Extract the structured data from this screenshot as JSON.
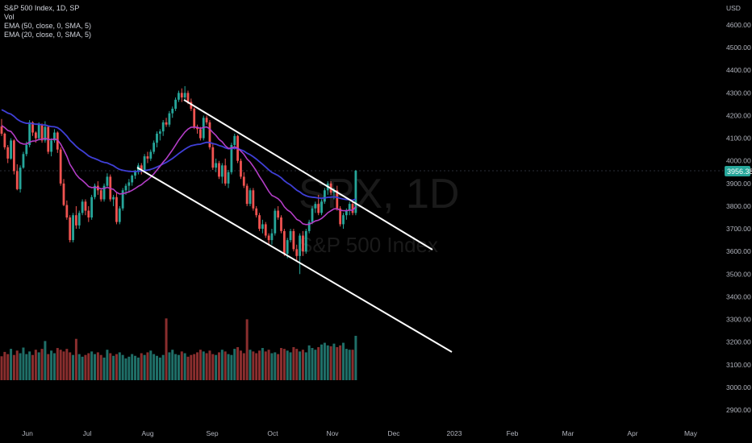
{
  "legend": {
    "title": "S&P 500 Index, 1D, SP",
    "vol": "Vol",
    "ema50": "EMA (50, close, 0, SMA, 5)",
    "ema20": "EMA (20, close, 0, SMA, 5)"
  },
  "currency": "USD",
  "watermark": {
    "symbol": "SPX, 1D",
    "name": "S&P 500 Index"
  },
  "last_price": "3956.38",
  "colors": {
    "up": "#26a69a",
    "down": "#ef5350",
    "ema50": "#3f3fd6",
    "ema20": "#b33dc6",
    "trendline": "#ffffff",
    "price_tag": "#26a69a"
  },
  "chart_data": {
    "type": "candlestick",
    "y_ticks": [
      "4600.00",
      "4500.00",
      "4400.00",
      "4300.00",
      "4200.00",
      "4100.00",
      "4000.00",
      "3900.00",
      "3800.00",
      "3700.00",
      "3600.00",
      "3500.00",
      "3400.00",
      "3300.00",
      "3200.00",
      "3100.00",
      "3000.00",
      "2900.00"
    ],
    "x_ticks": [
      "Jun",
      "Jul",
      "Aug",
      "Sep",
      "Oct",
      "Nov",
      "Dec",
      "2023",
      "Feb",
      "Mar",
      "Apr",
      "May"
    ],
    "ylim": [
      2860,
      4650
    ],
    "candles": [
      [
        4152,
        4185,
        4110,
        4120
      ],
      [
        4120,
        4125,
        4050,
        4060
      ],
      [
        4060,
        4070,
        3990,
        4010
      ],
      [
        4010,
        4100,
        4005,
        4090
      ],
      [
        4090,
        4095,
        3940,
        3955
      ],
      [
        3955,
        3985,
        3870,
        3875
      ],
      [
        3875,
        3980,
        3860,
        3970
      ],
      [
        3970,
        4040,
        3965,
        4030
      ],
      [
        4030,
        4085,
        4020,
        4070
      ],
      [
        4070,
        4180,
        4060,
        4170
      ],
      [
        4170,
        4175,
        4110,
        4125
      ],
      [
        4125,
        4130,
        4080,
        4100
      ],
      [
        4100,
        4170,
        4090,
        4160
      ],
      [
        4160,
        4165,
        4080,
        4090
      ],
      [
        4090,
        4175,
        4080,
        4150
      ],
      [
        4150,
        4155,
        4030,
        4040
      ],
      [
        4040,
        4100,
        4020,
        4090
      ],
      [
        4090,
        4140,
        4080,
        4125
      ],
      [
        4125,
        4130,
        4035,
        4050
      ],
      [
        4050,
        4060,
        3890,
        3900
      ],
      [
        3900,
        3920,
        3800,
        3805
      ],
      [
        3805,
        3825,
        3740,
        3750
      ],
      [
        3750,
        3760,
        3640,
        3650
      ],
      [
        3650,
        3770,
        3640,
        3760
      ],
      [
        3760,
        3800,
        3700,
        3715
      ],
      [
        3715,
        3780,
        3700,
        3770
      ],
      [
        3770,
        3830,
        3760,
        3820
      ],
      [
        3820,
        3830,
        3760,
        3780
      ],
      [
        3780,
        3800,
        3730,
        3750
      ],
      [
        3750,
        3850,
        3740,
        3840
      ],
      [
        3840,
        3900,
        3830,
        3890
      ],
      [
        3890,
        3910,
        3850,
        3870
      ],
      [
        3870,
        3880,
        3820,
        3830
      ],
      [
        3830,
        3900,
        3820,
        3890
      ],
      [
        3890,
        3945,
        3880,
        3930
      ],
      [
        3930,
        3940,
        3820,
        3830
      ],
      [
        3830,
        3850,
        3800,
        3840
      ],
      [
        3840,
        3860,
        3720,
        3730
      ],
      [
        3730,
        3800,
        3720,
        3790
      ],
      [
        3790,
        3880,
        3780,
        3870
      ],
      [
        3870,
        3900,
        3850,
        3890
      ],
      [
        3890,
        3920,
        3860,
        3905
      ],
      [
        3905,
        3940,
        3890,
        3935
      ],
      [
        3935,
        3960,
        3920,
        3955
      ],
      [
        3955,
        3990,
        3940,
        3980
      ],
      [
        3980,
        3990,
        3940,
        3960
      ],
      [
        3960,
        4030,
        3950,
        4020
      ],
      [
        4020,
        4040,
        3990,
        4010
      ],
      [
        4010,
        4050,
        4000,
        4040
      ],
      [
        4040,
        4090,
        4030,
        4080
      ],
      [
        4080,
        4130,
        4060,
        4120
      ],
      [
        4120,
        4140,
        4090,
        4130
      ],
      [
        4130,
        4180,
        4110,
        4170
      ],
      [
        4170,
        4190,
        4150,
        4160
      ],
      [
        4160,
        4220,
        4150,
        4210
      ],
      [
        4210,
        4240,
        4190,
        4230
      ],
      [
        4230,
        4280,
        4220,
        4270
      ],
      [
        4270,
        4310,
        4260,
        4300
      ],
      [
        4300,
        4320,
        4260,
        4280
      ],
      [
        4280,
        4330,
        4270,
        4300
      ],
      [
        4300,
        4310,
        4250,
        4260
      ],
      [
        4260,
        4275,
        4220,
        4230
      ],
      [
        4230,
        4235,
        4140,
        4150
      ],
      [
        4150,
        4160,
        4120,
        4140
      ],
      [
        4140,
        4150,
        4090,
        4100
      ],
      [
        4100,
        4200,
        4090,
        4190
      ],
      [
        4190,
        4200,
        4160,
        4170
      ],
      [
        4170,
        4180,
        4050,
        4060
      ],
      [
        4060,
        4080,
        3960,
        3970
      ],
      [
        3970,
        4010,
        3950,
        3990
      ],
      [
        3990,
        4000,
        3920,
        3930
      ],
      [
        3930,
        3990,
        3900,
        3980
      ],
      [
        3980,
        4010,
        3890,
        3900
      ],
      [
        3900,
        3960,
        3880,
        3950
      ],
      [
        3950,
        4080,
        3940,
        4070
      ],
      [
        4070,
        4120,
        4050,
        4110
      ],
      [
        4110,
        4115,
        3990,
        4000
      ],
      [
        4000,
        4010,
        3920,
        3930
      ],
      [
        3930,
        3950,
        3880,
        3890
      ],
      [
        3890,
        3900,
        3800,
        3810
      ],
      [
        3810,
        3880,
        3800,
        3870
      ],
      [
        3870,
        3880,
        3780,
        3790
      ],
      [
        3790,
        3800,
        3750,
        3760
      ],
      [
        3760,
        3770,
        3690,
        3700
      ],
      [
        3700,
        3740,
        3680,
        3720
      ],
      [
        3720,
        3730,
        3660,
        3670
      ],
      [
        3670,
        3680,
        3630,
        3650
      ],
      [
        3650,
        3700,
        3630,
        3680
      ],
      [
        3680,
        3790,
        3670,
        3780
      ],
      [
        3780,
        3800,
        3740,
        3750
      ],
      [
        3750,
        3760,
        3680,
        3690
      ],
      [
        3690,
        3700,
        3580,
        3590
      ],
      [
        3590,
        3660,
        3570,
        3650
      ],
      [
        3650,
        3700,
        3640,
        3690
      ],
      [
        3690,
        3700,
        3600,
        3610
      ],
      [
        3610,
        3630,
        3560,
        3580
      ],
      [
        3580,
        3680,
        3500,
        3670
      ],
      [
        3670,
        3690,
        3580,
        3600
      ],
      [
        3600,
        3700,
        3590,
        3690
      ],
      [
        3690,
        3740,
        3680,
        3730
      ],
      [
        3730,
        3800,
        3720,
        3790
      ],
      [
        3790,
        3820,
        3770,
        3810
      ],
      [
        3810,
        3850,
        3760,
        3770
      ],
      [
        3770,
        3830,
        3760,
        3820
      ],
      [
        3820,
        3880,
        3810,
        3870
      ],
      [
        3870,
        3910,
        3850,
        3900
      ],
      [
        3900,
        3910,
        3850,
        3860
      ],
      [
        3860,
        3880,
        3830,
        3870
      ],
      [
        3870,
        3890,
        3780,
        3790
      ],
      [
        3790,
        3800,
        3710,
        3720
      ],
      [
        3720,
        3770,
        3700,
        3760
      ],
      [
        3760,
        3790,
        3740,
        3780
      ],
      [
        3780,
        3820,
        3760,
        3810
      ],
      [
        3810,
        3820,
        3760,
        3770
      ],
      [
        3770,
        3960,
        3760,
        3956.38
      ]
    ],
    "volumes": [
      55,
      65,
      60,
      72,
      58,
      68,
      62,
      75,
      60,
      66,
      58,
      70,
      64,
      72,
      90,
      60,
      68,
      62,
      74,
      70,
      66,
      72,
      64,
      58,
      95,
      60,
      54,
      58,
      62,
      66,
      60,
      64,
      58,
      52,
      70,
      62,
      56,
      60,
      64,
      58,
      50,
      54,
      60,
      56,
      52,
      62,
      58,
      64,
      68,
      60,
      56,
      52,
      58,
      142,
      64,
      70,
      60,
      58,
      66,
      62,
      54,
      58,
      60,
      64,
      70,
      66,
      62,
      68,
      60,
      58,
      64,
      70,
      66,
      60,
      58,
      72,
      76,
      68,
      62,
      140,
      70,
      66,
      62,
      68,
      74,
      66,
      70,
      62,
      64,
      60,
      74,
      72,
      68,
      64,
      76,
      72,
      66,
      70,
      64,
      80,
      74,
      70,
      76,
      82,
      86,
      80,
      78,
      84,
      76,
      80,
      86,
      72,
      70,
      70,
      102
    ]
  }
}
